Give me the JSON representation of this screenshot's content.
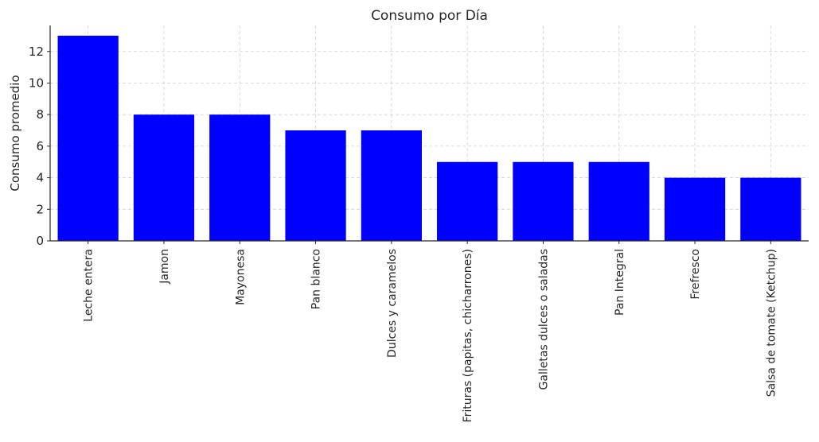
{
  "chart_data": {
    "type": "bar",
    "title": "Consumo por Día",
    "xlabel": "",
    "ylabel": "Consumo promedio",
    "categories": [
      "Leche entera",
      "Jamon",
      "Mayonesa",
      "Pan blanco",
      "Dulces y caramelos",
      "Frituras (papitas, chicharrones)",
      "Galletas dulces o saladas",
      "Pan Integral",
      "Frefresco",
      "Salsa de tomate (Ketchup)"
    ],
    "values": [
      13,
      8,
      8,
      7,
      7,
      5,
      5,
      5,
      4,
      4
    ],
    "ylim": [
      0,
      13.65
    ],
    "yticks": [
      0,
      2,
      4,
      6,
      8,
      10,
      12
    ],
    "grid": true,
    "bar_color": "#0000ff"
  }
}
